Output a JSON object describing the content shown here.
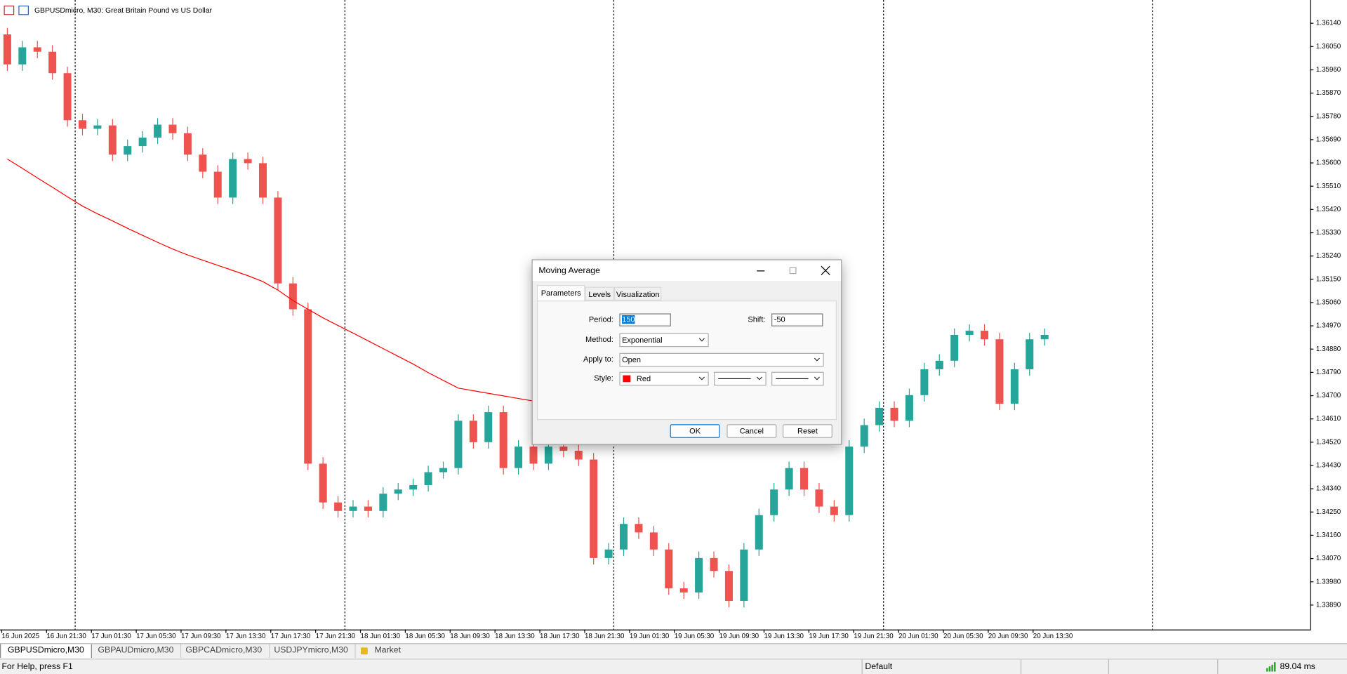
{
  "chart_header": "GBPUSDmicro, M30:  Great Britain Pound vs US Dollar",
  "chart_data": {
    "type": "candlestick",
    "up_color": "#26a69a",
    "down_color": "#ef5350",
    "ma_color": "#ff0000",
    "ylim": [
      1.33799,
      1.3623
    ],
    "yticks": [
      {
        "value": 1.3614,
        "label": "1.36140"
      },
      {
        "value": 1.3605,
        "label": "1.36050"
      },
      {
        "value": 1.3596,
        "label": "1.35960"
      },
      {
        "value": 1.3587,
        "label": "1.35870"
      },
      {
        "value": 1.3578,
        "label": "1.35780"
      },
      {
        "value": 1.3569,
        "label": "1.35690"
      },
      {
        "value": 1.356,
        "label": "1.35600"
      },
      {
        "value": 1.3551,
        "label": "1.35510"
      },
      {
        "value": 1.3542,
        "label": "1.35420"
      },
      {
        "value": 1.3533,
        "label": "1.35330"
      },
      {
        "value": 1.3524,
        "label": "1.35240"
      },
      {
        "value": 1.3515,
        "label": "1.35150"
      },
      {
        "value": 1.3506,
        "label": "1.35060"
      },
      {
        "value": 1.3497,
        "label": "1.34970"
      },
      {
        "value": 1.3488,
        "label": "1.34880"
      },
      {
        "value": 1.3479,
        "label": "1.34790"
      },
      {
        "value": 1.347,
        "label": "1.34700"
      },
      {
        "value": 1.3461,
        "label": "1.34610"
      },
      {
        "value": 1.3452,
        "label": "1.34520"
      },
      {
        "value": 1.3443,
        "label": "1.34430"
      },
      {
        "value": 1.3434,
        "label": "1.34340"
      },
      {
        "value": 1.3425,
        "label": "1.34250"
      },
      {
        "value": 1.3416,
        "label": "1.34160"
      },
      {
        "value": 1.3407,
        "label": "1.34070"
      },
      {
        "value": 1.3398,
        "label": "1.33980"
      },
      {
        "value": 1.3389,
        "label": "1.33890"
      }
    ],
    "x_labels": [
      "16 Jun 2025",
      "16 Jun 21:30",
      "17 Jun 01:30",
      "17 Jun 05:30",
      "17 Jun 09:30",
      "17 Jun 13:30",
      "17 Jun 17:30",
      "17 Jun 21:30",
      "18 Jun 01:30",
      "18 Jun 05:30",
      "18 Jun 09:30",
      "18 Jun 13:30",
      "18 Jun 17:30",
      "18 Jun 21:30",
      "19 Jun 01:30",
      "19 Jun 05:30",
      "19 Jun 09:30",
      "19 Jun 13:30",
      "19 Jun 17:30",
      "19 Jun 21:30",
      "20 Jun 01:30",
      "20 Jun 05:30",
      "20 Jun 09:30",
      "20 Jun 13:30"
    ],
    "open": [
      1.36097,
      1.35981,
      1.36047,
      1.3603,
      1.35947,
      1.35765,
      1.35732,
      1.35745,
      1.35632,
      1.35665,
      1.35698,
      1.35748,
      1.35715,
      1.35632,
      1.35566,
      1.35466,
      1.35615,
      1.35599,
      1.35466,
      1.35134,
      1.35034,
      1.34437,
      1.34287,
      1.34254,
      1.34271,
      1.34254,
      1.34321,
      1.34337,
      1.34354,
      1.34404,
      1.3442,
      1.34603,
      1.3452,
      1.34636,
      1.3442,
      1.34503,
      1.34437,
      1.34503,
      1.34487,
      1.34453,
      1.34072,
      1.34105,
      1.34204,
      1.34171,
      1.34105,
      1.33955,
      1.33939,
      1.34072,
      1.34022,
      1.33906,
      1.34105,
      1.34238,
      1.34337,
      1.3442,
      1.34337,
      1.34271,
      1.34238,
      1.34503,
      1.34586,
      1.34653,
      1.34603,
      1.34702,
      1.34802,
      1.34835,
      1.34935,
      1.34951,
      1.34918,
      1.34669,
      1.34802,
      1.34918
    ],
    "high": [
      1.36122,
      1.36072,
      1.36072,
      1.36055,
      1.35972,
      1.3579,
      1.3577,
      1.3577,
      1.3569,
      1.35723,
      1.35773,
      1.35773,
      1.3574,
      1.35657,
      1.35591,
      1.3564,
      1.3564,
      1.35624,
      1.35491,
      1.35159,
      1.35059,
      1.34462,
      1.34312,
      1.34296,
      1.34296,
      1.34346,
      1.34362,
      1.34379,
      1.34429,
      1.34445,
      1.34628,
      1.34628,
      1.34661,
      1.34661,
      1.34528,
      1.34528,
      1.34528,
      1.34528,
      1.34512,
      1.34478,
      1.3413,
      1.34229,
      1.34229,
      1.34196,
      1.3413,
      1.3398,
      1.34097,
      1.34097,
      1.34047,
      1.3413,
      1.34263,
      1.34362,
      1.34445,
      1.34445,
      1.34362,
      1.34296,
      1.34528,
      1.34611,
      1.34678,
      1.34678,
      1.34727,
      1.34827,
      1.3486,
      1.3496,
      1.34976,
      1.34976,
      1.34943,
      1.34827,
      1.34943,
      1.3496
    ],
    "low": [
      1.35956,
      1.35956,
      1.36005,
      1.35922,
      1.3574,
      1.35707,
      1.35707,
      1.35607,
      1.35607,
      1.3564,
      1.35673,
      1.3569,
      1.35607,
      1.35541,
      1.35441,
      1.35441,
      1.35574,
      1.35441,
      1.35109,
      1.35009,
      1.34412,
      1.34262,
      1.34229,
      1.34229,
      1.34229,
      1.34229,
      1.34296,
      1.34312,
      1.34329,
      1.34379,
      1.34395,
      1.34495,
      1.34495,
      1.34395,
      1.34395,
      1.34412,
      1.34412,
      1.34462,
      1.34428,
      1.34047,
      1.34047,
      1.3408,
      1.34146,
      1.3408,
      1.3393,
      1.33914,
      1.33914,
      1.33997,
      1.33881,
      1.33881,
      1.3408,
      1.34213,
      1.34312,
      1.34312,
      1.34246,
      1.34213,
      1.34213,
      1.34478,
      1.34561,
      1.34578,
      1.34578,
      1.34677,
      1.34777,
      1.3481,
      1.3491,
      1.34893,
      1.34644,
      1.34644,
      1.34777,
      1.34893
    ],
    "close": [
      1.35981,
      1.36047,
      1.3603,
      1.35947,
      1.35765,
      1.35732,
      1.35745,
      1.35632,
      1.35665,
      1.35698,
      1.35748,
      1.35715,
      1.35632,
      1.35566,
      1.35466,
      1.35615,
      1.35599,
      1.35466,
      1.35134,
      1.35034,
      1.34437,
      1.34287,
      1.34254,
      1.34271,
      1.34254,
      1.34321,
      1.34337,
      1.34354,
      1.34404,
      1.3442,
      1.34603,
      1.3452,
      1.34636,
      1.3442,
      1.34503,
      1.34437,
      1.34503,
      1.34487,
      1.34453,
      1.34072,
      1.34105,
      1.34204,
      1.34171,
      1.34105,
      1.33955,
      1.33939,
      1.34072,
      1.34022,
      1.33906,
      1.34105,
      1.34238,
      1.34337,
      1.3442,
      1.34337,
      1.34271,
      1.34238,
      1.34503,
      1.34586,
      1.34653,
      1.34603,
      1.34702,
      1.34802,
      1.34835,
      1.34935,
      1.34951,
      1.34918,
      1.34669,
      1.34802,
      1.34918,
      1.34935
    ],
    "ma_values": [
      1.35615,
      1.35579,
      1.35542,
      1.35506,
      1.35469,
      1.35433,
      1.35403,
      1.35376,
      1.35347,
      1.3532,
      1.35293,
      1.35267,
      1.35244,
      1.35224,
      1.35204,
      1.35184,
      1.35164,
      1.35141,
      1.35108,
      1.35068,
      1.35034,
      1.35001,
      1.34971,
      1.34942,
      1.34912,
      1.34882,
      1.34852,
      1.34822,
      1.34789,
      1.34759,
      1.34729,
      1.34719,
      1.34709,
      1.34699,
      1.34689,
      1.34679,
      1.34673,
      1.34666,
      null,
      null,
      null,
      null,
      null,
      null,
      null,
      null,
      null,
      null,
      null,
      null,
      null,
      null,
      null,
      null,
      null,
      null,
      null,
      null,
      null,
      null,
      null,
      null,
      null,
      null,
      null,
      null,
      null,
      null,
      null,
      null
    ]
  },
  "dialog": {
    "title": "Moving Average",
    "tabs": [
      "Parameters",
      "Levels",
      "Visualization"
    ],
    "period_label": "Period:",
    "period": "150",
    "shift_label": "Shift:",
    "shift": "-50",
    "method_label": "Method:",
    "method": "Exponential",
    "apply_label": "Apply to:",
    "apply": "Open",
    "style_label": "Style:",
    "style": "Red",
    "buttons": [
      "OK",
      "Cancel",
      "Reset"
    ]
  },
  "tabs": [
    "GBPUSDmicro,M30",
    "GBPAUDmicro,M30",
    "GBPCADmicro,M30",
    "USDJPYmicro,M30",
    "Market"
  ],
  "status": {
    "help": "For Help, press F1",
    "profile": "Default",
    "ping": "89.04 ms"
  }
}
